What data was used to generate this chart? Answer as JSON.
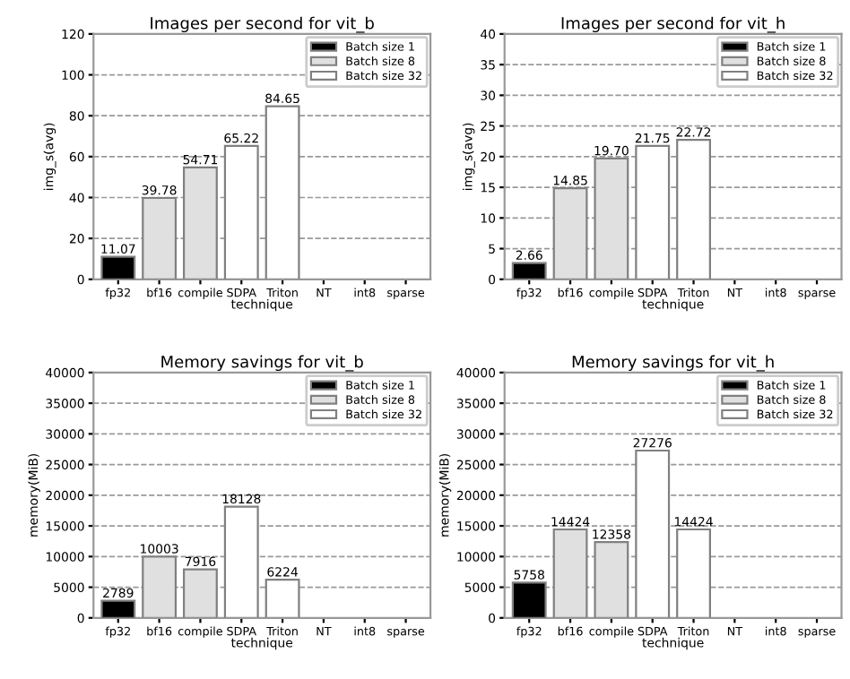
{
  "chart_data": [
    {
      "type": "bar",
      "title": "Images per second for vit_b",
      "xlabel": "technique",
      "ylabel": "img_s(avg)",
      "categories": [
        "fp32",
        "bf16",
        "compile",
        "SDPA",
        "Triton",
        "NT",
        "int8",
        "sparse"
      ],
      "ylim": [
        0,
        120
      ],
      "yticks": [
        0,
        20,
        40,
        60,
        80,
        100,
        120
      ],
      "grid": "y",
      "legend": "top right",
      "series": [
        {
          "name": "Batch size 1",
          "color": "#000000",
          "values": [
            11.07,
            null,
            null,
            null,
            null,
            null,
            null,
            null
          ],
          "value_labels": [
            "11.07",
            null,
            null,
            null,
            null,
            null,
            null,
            null
          ]
        },
        {
          "name": "Batch size 8",
          "color": "#e0e0e0",
          "values": [
            null,
            39.78,
            54.71,
            null,
            null,
            null,
            null,
            null
          ],
          "value_labels": [
            null,
            "39.78",
            "54.71",
            null,
            null,
            null,
            null,
            null
          ]
        },
        {
          "name": "Batch size 32",
          "color": "#ffffff",
          "values": [
            null,
            null,
            null,
            65.22,
            84.65,
            null,
            null,
            null
          ],
          "value_labels": [
            null,
            null,
            null,
            "65.22",
            "84.65",
            null,
            null,
            null
          ]
        }
      ]
    },
    {
      "type": "bar",
      "title": "Images per second for vit_h",
      "xlabel": "technique",
      "ylabel": "img_s(avg)",
      "categories": [
        "fp32",
        "bf16",
        "compile",
        "SDPA",
        "Triton",
        "NT",
        "int8",
        "sparse"
      ],
      "ylim": [
        0,
        40
      ],
      "yticks": [
        0,
        5,
        10,
        15,
        20,
        25,
        30,
        35,
        40
      ],
      "grid": "y",
      "legend": "top right",
      "series": [
        {
          "name": "Batch size 1",
          "color": "#000000",
          "values": [
            2.66,
            null,
            null,
            null,
            null,
            null,
            null,
            null
          ],
          "value_labels": [
            "2.66",
            null,
            null,
            null,
            null,
            null,
            null,
            null
          ]
        },
        {
          "name": "Batch size 8",
          "color": "#e0e0e0",
          "values": [
            null,
            14.85,
            19.7,
            null,
            null,
            null,
            null,
            null
          ],
          "value_labels": [
            null,
            "14.85",
            "19.70",
            null,
            null,
            null,
            null,
            null
          ]
        },
        {
          "name": "Batch size 32",
          "color": "#ffffff",
          "values": [
            null,
            null,
            null,
            21.75,
            22.72,
            null,
            null,
            null
          ],
          "value_labels": [
            null,
            null,
            null,
            "21.75",
            "22.72",
            null,
            null,
            null
          ]
        }
      ]
    },
    {
      "type": "bar",
      "title": "Memory savings for vit_b",
      "xlabel": "technique",
      "ylabel": "memory(MiB)",
      "categories": [
        "fp32",
        "bf16",
        "compile",
        "SDPA",
        "Triton",
        "NT",
        "int8",
        "sparse"
      ],
      "ylim": [
        0,
        40000
      ],
      "yticks": [
        0,
        5000,
        10000,
        15000,
        20000,
        25000,
        30000,
        35000,
        40000
      ],
      "grid": "y",
      "legend": "top right",
      "series": [
        {
          "name": "Batch size 1",
          "color": "#000000",
          "values": [
            2789,
            null,
            null,
            null,
            null,
            null,
            null,
            null
          ],
          "value_labels": [
            "2789",
            null,
            null,
            null,
            null,
            null,
            null,
            null
          ]
        },
        {
          "name": "Batch size 8",
          "color": "#e0e0e0",
          "values": [
            null,
            10003,
            7916,
            null,
            null,
            null,
            null,
            null
          ],
          "value_labels": [
            null,
            "10003",
            "7916",
            null,
            null,
            null,
            null,
            null
          ]
        },
        {
          "name": "Batch size 32",
          "color": "#ffffff",
          "values": [
            null,
            null,
            null,
            18128,
            6224,
            null,
            null,
            null
          ],
          "value_labels": [
            null,
            null,
            null,
            "18128",
            "6224",
            null,
            null,
            null
          ]
        }
      ]
    },
    {
      "type": "bar",
      "title": "Memory savings for vit_h",
      "xlabel": "technique",
      "ylabel": "memory(MiB)",
      "categories": [
        "fp32",
        "bf16",
        "compile",
        "SDPA",
        "Triton",
        "NT",
        "int8",
        "sparse"
      ],
      "ylim": [
        0,
        40000
      ],
      "yticks": [
        0,
        5000,
        10000,
        15000,
        20000,
        25000,
        30000,
        35000,
        40000
      ],
      "grid": "y",
      "legend": "top right",
      "series": [
        {
          "name": "Batch size 1",
          "color": "#000000",
          "values": [
            5758,
            null,
            null,
            null,
            null,
            null,
            null,
            null
          ],
          "value_labels": [
            "5758",
            null,
            null,
            null,
            null,
            null,
            null,
            null
          ]
        },
        {
          "name": "Batch size 8",
          "color": "#e0e0e0",
          "values": [
            null,
            14424,
            12358,
            null,
            null,
            null,
            null,
            null
          ],
          "value_labels": [
            null,
            "14424",
            "12358",
            null,
            null,
            null,
            null,
            null
          ]
        },
        {
          "name": "Batch size 32",
          "color": "#ffffff",
          "values": [
            null,
            null,
            null,
            27276,
            14424,
            null,
            null,
            null
          ],
          "value_labels": [
            null,
            null,
            null,
            "27276",
            "14424",
            null,
            null,
            null
          ]
        }
      ]
    }
  ]
}
